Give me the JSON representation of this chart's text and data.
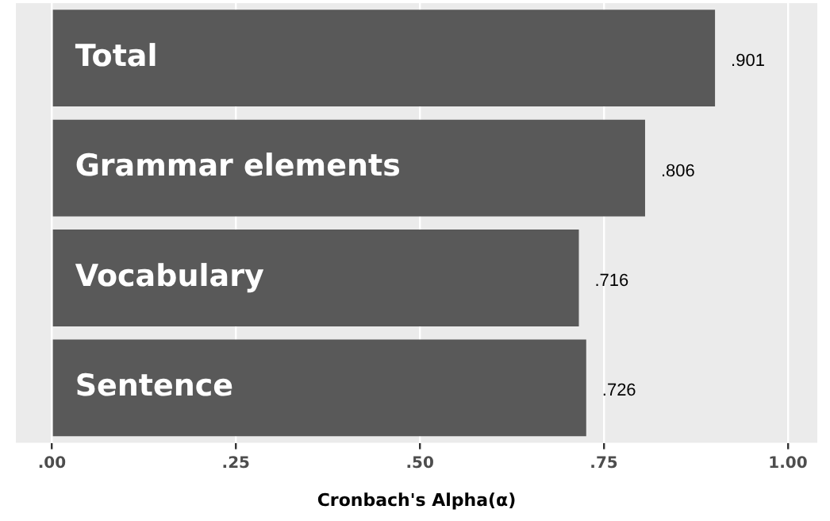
{
  "chart_data": {
    "type": "bar",
    "orientation": "horizontal",
    "xlabel": "Cronbach's Alpha(α)",
    "categories": [
      "Total",
      "Grammar elements",
      "Vocabulary",
      "Sentence"
    ],
    "values": [
      0.901,
      0.806,
      0.716,
      0.726
    ],
    "value_labels": [
      ".901",
      ".806",
      ".716",
      ".726"
    ],
    "color": "#595959",
    "xlim": [
      -0.049,
      1.04
    ],
    "xticks": [
      {
        "value": 0,
        "label": ".00"
      },
      {
        "value": 0.25,
        "label": ".25"
      },
      {
        "value": 0.5,
        "label": ".50"
      },
      {
        "value": 0.75,
        "label": ".75"
      },
      {
        "value": 1,
        "label": "1.00"
      }
    ],
    "grid": "x",
    "tick_labels": "x"
  }
}
